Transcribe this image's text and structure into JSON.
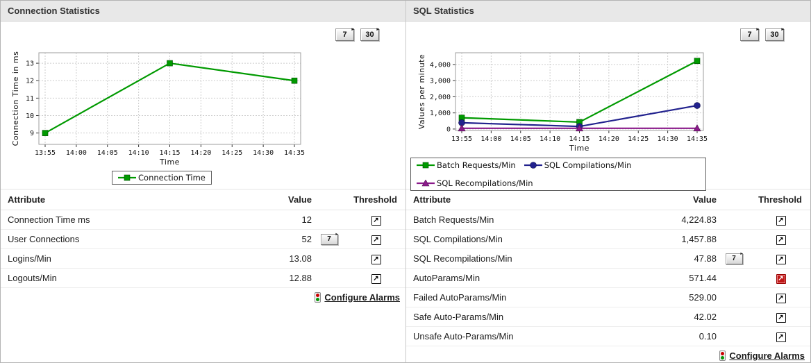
{
  "colors": {
    "green_series": "#009a00",
    "blue_series": "#22228e",
    "purple_series": "#8b1a8b",
    "alarm_red": "#c01818",
    "header_bg": "#e8e8e8"
  },
  "icons": {
    "threshold_arrow": "↗",
    "button_arrow": "▸"
  },
  "chart_data": [
    {
      "type": "line",
      "title": "",
      "xlabel": "Time",
      "ylabel": "Connection Time in ms",
      "x_ticks": [
        "13:55",
        "14:00",
        "14:05",
        "14:10",
        "14:15",
        "14:20",
        "14:25",
        "14:30",
        "14:35"
      ],
      "point_tick_idx": [
        0,
        4,
        8
      ],
      "x_points": [
        "13:55",
        "14:15",
        "14:35"
      ],
      "y_ticks": [
        {
          "v": 9,
          "label": "9"
        },
        {
          "v": 10,
          "label": "10"
        },
        {
          "v": 11,
          "label": "11"
        },
        {
          "v": 12,
          "label": "12"
        },
        {
          "v": 13,
          "label": "13"
        }
      ],
      "ylim": [
        8.35,
        13.6
      ],
      "grid": true,
      "legend_position": "bottom",
      "series": [
        {
          "name": "Connection Time",
          "color": "#009a00",
          "marker": "square",
          "values": [
            9,
            13,
            12
          ]
        }
      ]
    },
    {
      "type": "line",
      "title": "",
      "xlabel": "Time",
      "ylabel": "Values per minute",
      "x_ticks": [
        "13:55",
        "14:00",
        "14:05",
        "14:10",
        "14:15",
        "14:20",
        "14:25",
        "14:30",
        "14:35"
      ],
      "point_tick_idx": [
        0,
        4,
        8
      ],
      "x_points": [
        "13:55",
        "14:15",
        "14:35"
      ],
      "y_ticks": [
        {
          "v": 0,
          "label": "0"
        },
        {
          "v": 1000,
          "label": "1,000"
        },
        {
          "v": 2000,
          "label": "2,000"
        },
        {
          "v": 3000,
          "label": "3,000"
        },
        {
          "v": 4000,
          "label": "4,000"
        }
      ],
      "ylim": [
        -90,
        4730
      ],
      "grid": true,
      "legend_position": "bottom",
      "series": [
        {
          "name": "Batch Requests/Min",
          "color": "#009a00",
          "marker": "square",
          "values": [
            700,
            430,
            4224.83
          ]
        },
        {
          "name": "SQL Compilations/Min",
          "color": "#22228e",
          "marker": "circle",
          "values": [
            390,
            160,
            1457.88
          ]
        },
        {
          "name": "SQL Recompilations/Min",
          "color": "#8b1a8b",
          "marker": "triangle",
          "values": [
            48,
            48,
            47.88
          ]
        }
      ]
    }
  ],
  "panels": [
    {
      "title": "Connection Statistics",
      "buttons": {
        "seven": "7",
        "thirty": "30"
      },
      "table": {
        "headers": {
          "attribute": "Attribute",
          "value": "Value",
          "threshold": "Threshold"
        },
        "rows": [
          {
            "attribute": "Connection Time ms",
            "value": "12",
            "button": null,
            "alarm": false
          },
          {
            "attribute": "User Connections",
            "value": "52",
            "button": "7",
            "alarm": false
          },
          {
            "attribute": "Logins/Min",
            "value": "13.08",
            "button": null,
            "alarm": false
          },
          {
            "attribute": "Logouts/Min",
            "value": "12.88",
            "button": null,
            "alarm": false
          }
        ],
        "configure_alarms_label": "Configure Alarms"
      }
    },
    {
      "title": "SQL Statistics",
      "buttons": {
        "seven": "7",
        "thirty": "30"
      },
      "table": {
        "headers": {
          "attribute": "Attribute",
          "value": "Value",
          "threshold": "Threshold"
        },
        "rows": [
          {
            "attribute": "Batch Requests/Min",
            "value": "4,224.83",
            "button": null,
            "alarm": false
          },
          {
            "attribute": "SQL Compilations/Min",
            "value": "1,457.88",
            "button": null,
            "alarm": false
          },
          {
            "attribute": "SQL Recompilations/Min",
            "value": "47.88",
            "button": "7",
            "alarm": false
          },
          {
            "attribute": "AutoParams/Min",
            "value": "571.44",
            "button": null,
            "alarm": true
          },
          {
            "attribute": "Failed AutoParams/Min",
            "value": "529.00",
            "button": null,
            "alarm": false
          },
          {
            "attribute": "Safe Auto-Params/Min",
            "value": "42.02",
            "button": null,
            "alarm": false
          },
          {
            "attribute": "Unsafe Auto-Params/Min",
            "value": "0.10",
            "button": null,
            "alarm": false
          }
        ],
        "configure_alarms_label": "Configure Alarms"
      }
    }
  ]
}
